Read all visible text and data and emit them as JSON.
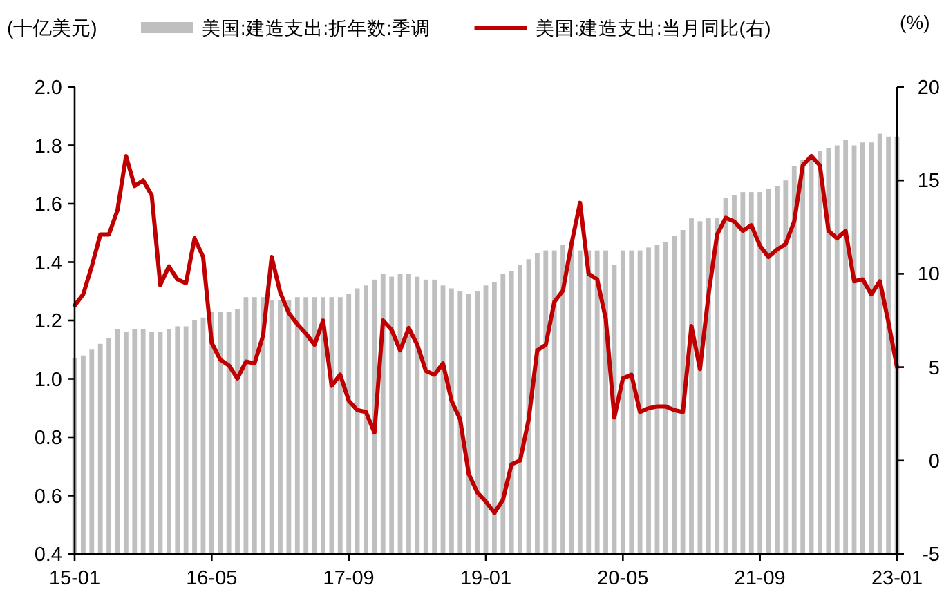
{
  "chart_data": {
    "type": "bar",
    "legend": "top",
    "grid": false,
    "ylabel": "(十亿美元)",
    "y2label": "(%)",
    "categories": [
      "15-01",
      null,
      null,
      null,
      null,
      null,
      null,
      null,
      null,
      null,
      null,
      null,
      null,
      null,
      null,
      null,
      "16-05",
      null,
      null,
      null,
      null,
      null,
      null,
      null,
      null,
      null,
      null,
      null,
      null,
      null,
      null,
      null,
      "17-09",
      null,
      null,
      null,
      null,
      null,
      null,
      null,
      null,
      null,
      null,
      null,
      null,
      null,
      null,
      null,
      "19-01",
      null,
      null,
      null,
      null,
      null,
      null,
      null,
      null,
      null,
      null,
      null,
      null,
      null,
      null,
      null,
      "20-05",
      null,
      null,
      null,
      null,
      null,
      null,
      null,
      null,
      null,
      null,
      null,
      null,
      null,
      null,
      null,
      "21-09",
      null,
      null,
      null,
      null,
      null,
      null,
      null,
      null,
      null,
      null,
      null,
      null,
      null,
      null,
      null,
      "23-01"
    ],
    "ylim": [
      0.4,
      2.0
    ],
    "yticks": [
      {
        "value": 0.4,
        "label": "0.4"
      },
      {
        "value": 0.6,
        "label": "0.6"
      },
      {
        "value": 0.8,
        "label": "0.8"
      },
      {
        "value": 1.0,
        "label": "1.0"
      },
      {
        "value": 1.2,
        "label": "1.2"
      },
      {
        "value": 1.4,
        "label": "1.4"
      },
      {
        "value": 1.6,
        "label": "1.6"
      },
      {
        "value": 1.8,
        "label": "1.8"
      },
      {
        "value": 2.0,
        "label": "2.0"
      }
    ],
    "y2lim": [
      -5,
      20
    ],
    "y2ticks": [
      -5,
      0,
      5,
      10,
      15,
      20
    ],
    "series": [
      {
        "name": "美国:建造支出:折年数:季调",
        "color": "#bfbfbf",
        "values": [
          1.07,
          1.08,
          1.1,
          1.12,
          1.14,
          1.17,
          1.16,
          1.17,
          1.17,
          1.16,
          1.16,
          1.17,
          1.18,
          1.18,
          1.2,
          1.21,
          1.23,
          1.23,
          1.23,
          1.24,
          1.28,
          1.28,
          1.28,
          1.27,
          1.27,
          1.27,
          1.28,
          1.28,
          1.28,
          1.28,
          1.28,
          1.28,
          1.29,
          1.31,
          1.32,
          1.34,
          1.36,
          1.35,
          1.36,
          1.36,
          1.35,
          1.34,
          1.34,
          1.32,
          1.31,
          1.3,
          1.29,
          1.3,
          1.32,
          1.33,
          1.36,
          1.37,
          1.39,
          1.41,
          1.43,
          1.44,
          1.44,
          1.46,
          1.47,
          1.44,
          1.44,
          1.44,
          1.44,
          1.39,
          1.44,
          1.44,
          1.44,
          1.45,
          1.46,
          1.47,
          1.49,
          1.51,
          1.55,
          1.54,
          1.55,
          1.55,
          1.62,
          1.63,
          1.64,
          1.64,
          1.64,
          1.65,
          1.66,
          1.68,
          1.73,
          1.75,
          1.76,
          1.78,
          1.79,
          1.8,
          1.82,
          1.8,
          1.81,
          1.81,
          1.84,
          1.83,
          1.83
        ]
      },
      {
        "name": "美国:建造支出:当月同比(右)",
        "type": "line",
        "axis": "y2",
        "color": "#c00000",
        "values": [
          8.3,
          8.9,
          10.4,
          12.1,
          12.1,
          13.4,
          16.3,
          14.7,
          15.0,
          14.2,
          9.4,
          10.4,
          9.7,
          9.5,
          11.9,
          10.9,
          6.3,
          5.4,
          5.1,
          4.4,
          5.3,
          5.2,
          6.7,
          10.9,
          9.0,
          7.9,
          7.3,
          6.8,
          6.2,
          7.5,
          4.0,
          4.6,
          3.2,
          2.7,
          2.6,
          1.5,
          7.5,
          7.0,
          5.9,
          7.1,
          6.2,
          4.8,
          4.6,
          5.2,
          3.2,
          2.2,
          -0.7,
          -1.7,
          -2.2,
          -2.8,
          -2.1,
          -0.2,
          0.0,
          2.2,
          5.9,
          6.2,
          8.5,
          9.1,
          11.6,
          13.8,
          10.0,
          9.7,
          7.6,
          2.3,
          4.4,
          4.6,
          2.6,
          2.8,
          2.9,
          2.9,
          2.7,
          2.6,
          7.2,
          4.9,
          8.9,
          12.1,
          13.0,
          12.8,
          12.3,
          12.6,
          11.5,
          10.9,
          11.3,
          11.6,
          12.8,
          15.8,
          16.3,
          15.8,
          12.3,
          11.9,
          12.3,
          9.6,
          9.7,
          8.9,
          9.6,
          7.4,
          5.0
        ]
      }
    ]
  }
}
